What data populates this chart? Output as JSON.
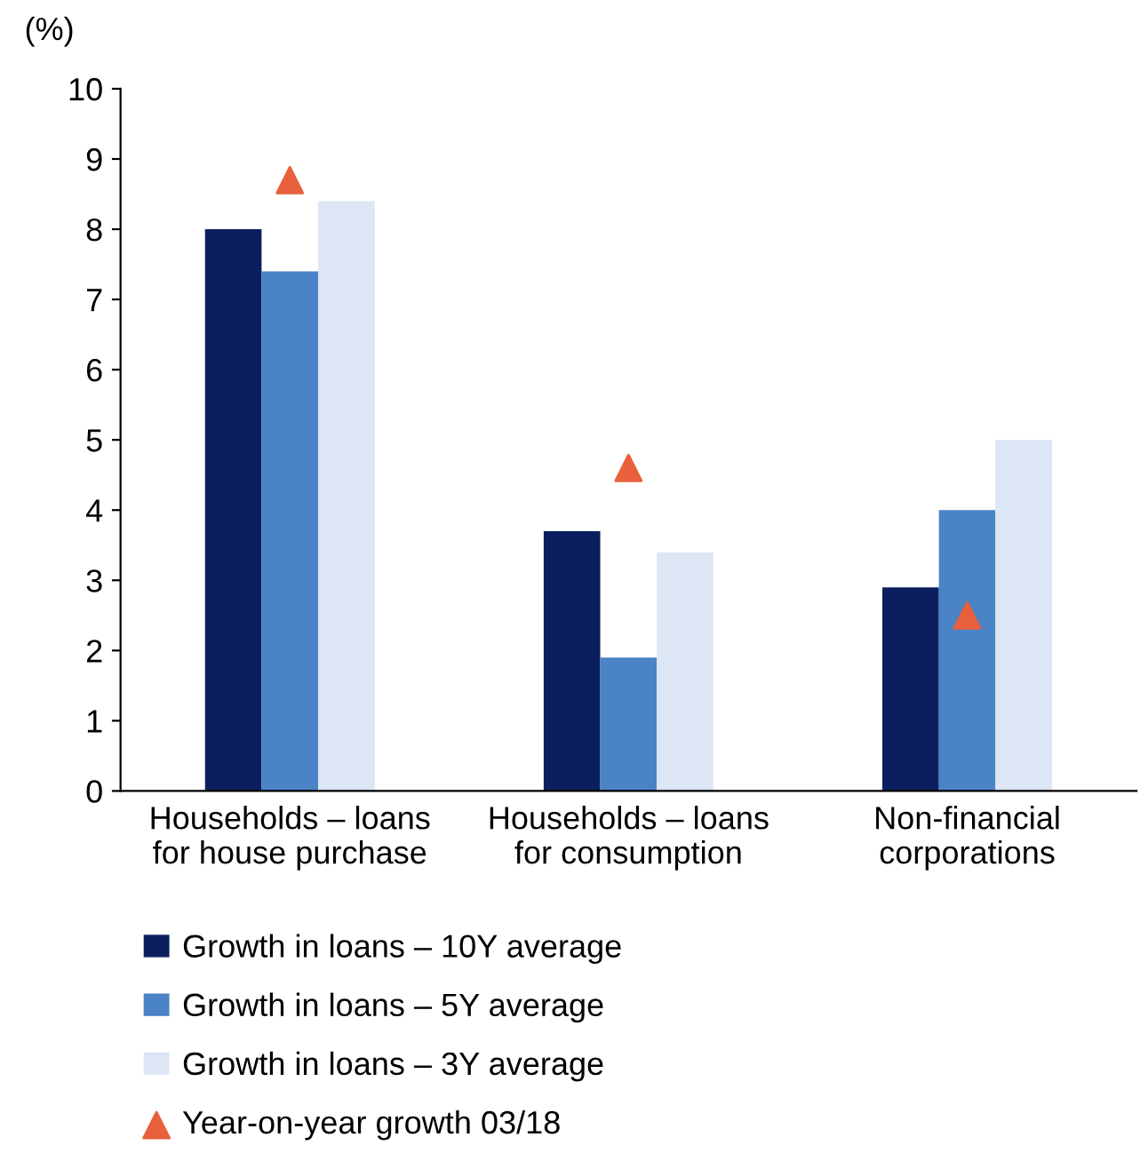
{
  "chart_data": {
    "type": "bar",
    "ylabel": "(%)",
    "categories": [
      "Households – loans\nfor house purchase",
      "Households – loans\nfor consumption",
      "Non-financial\ncorporations"
    ],
    "series": [
      {
        "name": "Growth in loans – 10Y average",
        "color": "#0b1f5e",
        "values": [
          8.0,
          3.7,
          2.9
        ]
      },
      {
        "name": "Growth in loans – 5Y average",
        "color": "#4a83c6",
        "values": [
          7.4,
          1.9,
          4.0
        ]
      },
      {
        "name": "Growth in loans – 3Y average",
        "color": "#dce6f4",
        "values": [
          8.4,
          3.4,
          5.0
        ]
      },
      {
        "name": "Year-on-year growth 03/18",
        "type": "scatter",
        "color": "#e8603c",
        "marker": "triangle",
        "x": [
          "Households – loans\nfor house purchase",
          "Households – loans\nfor consumption",
          "Non-financial\ncorporations"
        ],
        "values": [
          8.7,
          4.6,
          2.5
        ]
      }
    ],
    "ylim": [
      0,
      10
    ],
    "yticks": [
      0,
      1,
      2,
      3,
      4,
      5,
      6,
      7,
      8,
      9,
      10
    ],
    "grid": false,
    "legend": "bottom"
  }
}
